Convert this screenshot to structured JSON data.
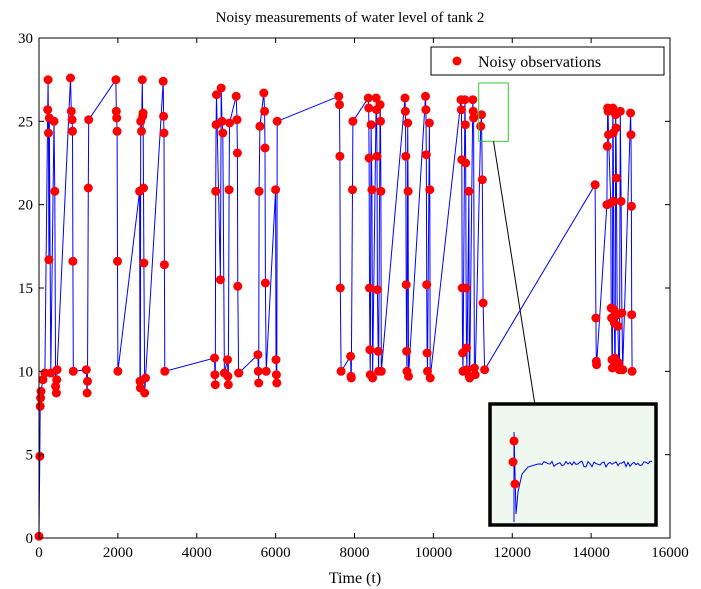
{
  "chart_data": {
    "type": "line",
    "title": "Noisy measurements of water level of tank 2",
    "xlabel": "Time (t)",
    "ylabel": "",
    "xlim": [
      0,
      16000
    ],
    "ylim": [
      0,
      30
    ],
    "xticks": [
      0,
      2000,
      4000,
      6000,
      8000,
      10000,
      12000,
      14000,
      16000
    ],
    "yticks": [
      0,
      5,
      10,
      15,
      20,
      25,
      30
    ],
    "grid": false,
    "legend": {
      "position": "top-right",
      "entries": [
        "Noisy observations"
      ]
    },
    "colors": {
      "line": "#0000ff",
      "marker": "#ff0000",
      "inset_bg": "#eef8ee",
      "zoom_box": "#33cc33"
    },
    "series": [
      {
        "name": "Noisy observations",
        "kind": "scatter",
        "points": [
          [
            0,
            0.1
          ],
          [
            20,
            4.9
          ],
          [
            30,
            7.9
          ],
          [
            40,
            8.4
          ],
          [
            50,
            8.8
          ],
          [
            100,
            9.5
          ],
          [
            150,
            9.9
          ],
          [
            220,
            25.7
          ],
          [
            230,
            27.5
          ],
          [
            240,
            24.3
          ],
          [
            250,
            16.7
          ],
          [
            260,
            25.2
          ],
          [
            300,
            9.9
          ],
          [
            380,
            25.0
          ],
          [
            400,
            20.8
          ],
          [
            420,
            9.1
          ],
          [
            440,
            8.7
          ],
          [
            450,
            9.5
          ],
          [
            460,
            10.1
          ],
          [
            800,
            27.6
          ],
          [
            820,
            25.6
          ],
          [
            840,
            25.1
          ],
          [
            850,
            24.4
          ],
          [
            860,
            16.6
          ],
          [
            870,
            10.0
          ],
          [
            1200,
            10.1
          ],
          [
            1220,
            8.7
          ],
          [
            1230,
            9.4
          ],
          [
            1250,
            21.0
          ],
          [
            1260,
            25.1
          ],
          [
            1950,
            27.5
          ],
          [
            1960,
            25.6
          ],
          [
            1970,
            25.2
          ],
          [
            1980,
            24.4
          ],
          [
            1990,
            16.6
          ],
          [
            2000,
            10.0
          ],
          [
            2550,
            20.8
          ],
          [
            2560,
            9.4
          ],
          [
            2570,
            9.0
          ],
          [
            2580,
            25.0
          ],
          [
            2600,
            24.4
          ],
          [
            2620,
            27.5
          ],
          [
            2630,
            25.3
          ],
          [
            2640,
            25.5
          ],
          [
            2650,
            21.0
          ],
          [
            2660,
            16.5
          ],
          [
            2680,
            8.7
          ],
          [
            2700,
            9.6
          ],
          [
            3150,
            27.4
          ],
          [
            3160,
            25.3
          ],
          [
            3170,
            24.3
          ],
          [
            3180,
            16.4
          ],
          [
            3190,
            10.0
          ],
          [
            4450,
            10.8
          ],
          [
            4460,
            9.8
          ],
          [
            4470,
            9.2
          ],
          [
            4480,
            20.8
          ],
          [
            4490,
            24.8
          ],
          [
            4500,
            26.6
          ],
          [
            4600,
            15.5
          ],
          [
            4620,
            27.0
          ],
          [
            4640,
            25.0
          ],
          [
            4660,
            24.3
          ],
          [
            4700,
            9.9
          ],
          [
            4780,
            10.7
          ],
          [
            4790,
            9.7
          ],
          [
            4800,
            9.2
          ],
          [
            4820,
            20.9
          ],
          [
            4830,
            24.9
          ],
          [
            5000,
            26.5
          ],
          [
            5020,
            25.1
          ],
          [
            5030,
            23.1
          ],
          [
            5040,
            15.1
          ],
          [
            5060,
            9.9
          ],
          [
            5070,
            9.9
          ],
          [
            5550,
            11.0
          ],
          [
            5560,
            10.0
          ],
          [
            5570,
            9.3
          ],
          [
            5580,
            20.8
          ],
          [
            5600,
            24.7
          ],
          [
            5700,
            26.7
          ],
          [
            5720,
            25.6
          ],
          [
            5730,
            23.4
          ],
          [
            5740,
            15.3
          ],
          [
            5760,
            10.0
          ],
          [
            6000,
            20.9
          ],
          [
            6010,
            10.7
          ],
          [
            6020,
            9.8
          ],
          [
            6030,
            9.3
          ],
          [
            6040,
            25.0
          ],
          [
            7600,
            26.5
          ],
          [
            7620,
            26.0
          ],
          [
            7630,
            22.9
          ],
          [
            7640,
            15.0
          ],
          [
            7660,
            10.0
          ],
          [
            7900,
            10.9
          ],
          [
            7910,
            9.7
          ],
          [
            7920,
            9.6
          ],
          [
            7950,
            20.9
          ],
          [
            7960,
            25.0
          ],
          [
            8350,
            26.4
          ],
          [
            8360,
            25.8
          ],
          [
            8370,
            22.8
          ],
          [
            8380,
            15.0
          ],
          [
            8390,
            11.3
          ],
          [
            8400,
            9.8
          ],
          [
            8420,
            24.8
          ],
          [
            8440,
            20.9
          ],
          [
            8460,
            9.6
          ],
          [
            8550,
            26.4
          ],
          [
            8560,
            25.7
          ],
          [
            8570,
            22.9
          ],
          [
            8580,
            14.9
          ],
          [
            8600,
            11.2
          ],
          [
            8610,
            10.0
          ],
          [
            8650,
            26.0
          ],
          [
            8660,
            25.0
          ],
          [
            8670,
            20.8
          ],
          [
            8680,
            10.0
          ],
          [
            9280,
            26.4
          ],
          [
            9290,
            25.6
          ],
          [
            9300,
            22.9
          ],
          [
            9310,
            15.2
          ],
          [
            9320,
            11.2
          ],
          [
            9330,
            10.0
          ],
          [
            9350,
            24.9
          ],
          [
            9360,
            20.8
          ],
          [
            9370,
            9.7
          ],
          [
            9800,
            26.5
          ],
          [
            9810,
            25.7
          ],
          [
            9820,
            23.0
          ],
          [
            9830,
            15.2
          ],
          [
            9840,
            11.1
          ],
          [
            9850,
            10.0
          ],
          [
            9900,
            24.9
          ],
          [
            9910,
            20.9
          ],
          [
            9920,
            9.6
          ],
          [
            10700,
            26.3
          ],
          [
            10710,
            25.7
          ],
          [
            10720,
            22.7
          ],
          [
            10730,
            15.0
          ],
          [
            10740,
            11.1
          ],
          [
            10750,
            10.0
          ],
          [
            10800,
            26.3
          ],
          [
            10810,
            24.8
          ],
          [
            10820,
            22.5
          ],
          [
            10830,
            15.0
          ],
          [
            10840,
            11.4
          ],
          [
            10850,
            10.1
          ],
          [
            10900,
            20.8
          ],
          [
            10910,
            9.7
          ],
          [
            10920,
            9.6
          ],
          [
            11000,
            26.3
          ],
          [
            11010,
            25.6
          ],
          [
            11020,
            25.2
          ],
          [
            11040,
            10.2
          ],
          [
            11060,
            9.8
          ],
          [
            11200,
            24.7
          ],
          [
            11220,
            25.4
          ],
          [
            11240,
            21.5
          ],
          [
            11260,
            14.1
          ],
          [
            11300,
            10.1
          ],
          [
            14100,
            21.2
          ],
          [
            14120,
            13.2
          ],
          [
            14130,
            10.6
          ],
          [
            14140,
            10.4
          ],
          [
            14400,
            20.0
          ],
          [
            14410,
            23.5
          ],
          [
            14420,
            25.8
          ],
          [
            14430,
            25.6
          ],
          [
            14440,
            24.2
          ],
          [
            14500,
            20.1
          ],
          [
            14510,
            13.8
          ],
          [
            14520,
            13.2
          ],
          [
            14530,
            10.7
          ],
          [
            14540,
            10.2
          ],
          [
            14550,
            25.8
          ],
          [
            14560,
            24.3
          ],
          [
            14570,
            20.2
          ],
          [
            14580,
            13.7
          ],
          [
            14590,
            12.9
          ],
          [
            14600,
            10.8
          ],
          [
            14610,
            10.3
          ],
          [
            14620,
            25.4
          ],
          [
            14630,
            24.6
          ],
          [
            14640,
            21.6
          ],
          [
            14660,
            13.4
          ],
          [
            14680,
            12.7
          ],
          [
            14700,
            10.5
          ],
          [
            14720,
            10.1
          ],
          [
            14740,
            25.6
          ],
          [
            14760,
            20.2
          ],
          [
            14780,
            13.5
          ],
          [
            14800,
            10.1
          ],
          [
            15000,
            25.5
          ],
          [
            15010,
            24.2
          ],
          [
            15020,
            19.9
          ],
          [
            15030,
            13.4
          ],
          [
            15040,
            10.0
          ]
        ]
      }
    ],
    "inset": {
      "zoom_region": {
        "x": [
          11150,
          11900
        ],
        "y": [
          23.8,
          27.3
        ]
      }
    }
  }
}
